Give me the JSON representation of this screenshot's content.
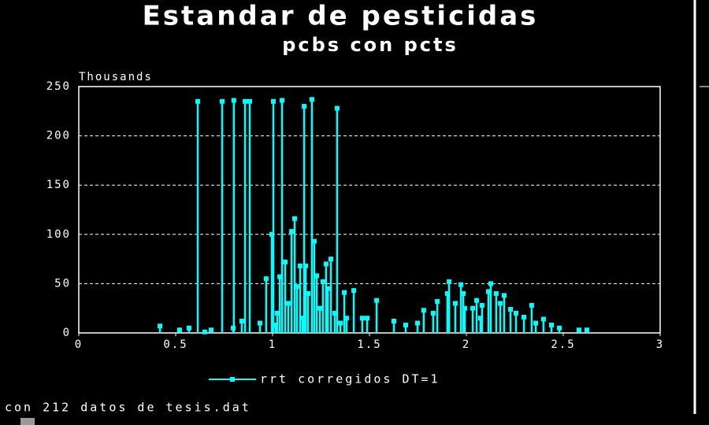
{
  "chart_data": {
    "type": "stem",
    "title": "Estandar de pesticidas",
    "subtitle": "pcbs con pcts",
    "y_label": "Thousands",
    "footnote": "con 212 datos de tesis.dat",
    "xlim": [
      0,
      3
    ],
    "xticks": [
      0,
      0.5,
      1,
      1.5,
      2,
      2.5,
      3
    ],
    "ylim": [
      0,
      250
    ],
    "yticks": [
      0,
      50,
      100,
      150,
      200,
      250
    ],
    "grid": true,
    "series": [
      {
        "name": "rrt corregidos DT=1",
        "color": "#00ffff",
        "x": [
          0.614,
          0.74,
          0.8,
          0.858,
          0.882,
          1.004,
          1.049,
          1.163,
          1.203,
          1.333,
          0.419,
          0.52,
          0.569,
          0.65,
          0.683,
          0.797,
          0.841,
          0.935,
          0.967,
          0.996,
          1.024,
          1.037,
          1.065,
          1.098,
          1.114,
          1.126,
          1.142,
          1.171,
          1.183,
          1.215,
          1.228,
          1.26,
          1.276,
          1.301,
          1.37,
          1.419,
          1.463,
          1.488,
          1.537,
          1.626,
          1.687,
          1.748,
          1.78,
          1.829,
          1.85,
          1.902,
          1.911,
          1.943,
          1.972,
          1.992,
          2.033,
          2.053,
          2.081,
          2.114,
          2.126,
          2.154,
          2.195,
          2.228,
          2.256,
          2.297,
          2.337,
          2.358,
          2.398,
          2.439,
          2.48,
          2.581,
          2.622,
          1.016,
          1.081,
          1.154,
          1.244,
          1.285,
          1.321,
          1.35,
          1.382,
          1.984,
          2.073,
          2.175
        ],
        "values": [
          235,
          235,
          236,
          235,
          235,
          235,
          236,
          230,
          237,
          228,
          7,
          3,
          5,
          1,
          3,
          5,
          12,
          10,
          55,
          100,
          20,
          57,
          72,
          103,
          116,
          47,
          68,
          68,
          40,
          93,
          58,
          52,
          70,
          75,
          41,
          43,
          15,
          15,
          33,
          12,
          8,
          10,
          23,
          20,
          32,
          40,
          52,
          30,
          49,
          25,
          25,
          33,
          28,
          42,
          50,
          40,
          38,
          24,
          20,
          16,
          28,
          10,
          14,
          8,
          5,
          3,
          3,
          8,
          30,
          15,
          25,
          45,
          20,
          10,
          15,
          40,
          15,
          30
        ]
      }
    ]
  }
}
